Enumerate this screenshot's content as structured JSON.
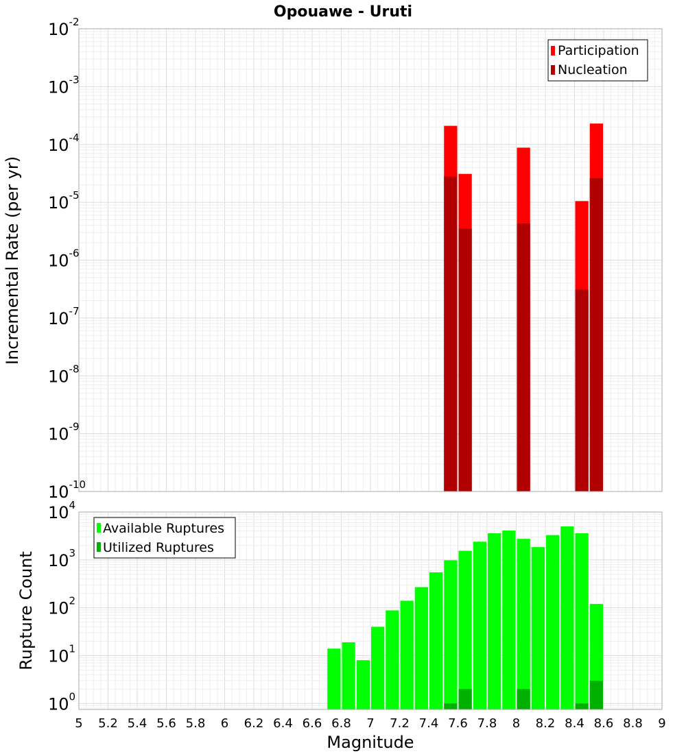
{
  "chart_data": [
    {
      "type": "bar",
      "title": "Opouawe - Uruti",
      "xlabel": "",
      "ylabel": "Incremental Rate (per yr)",
      "yscale": "log",
      "ylim": [
        1e-10,
        0.01
      ],
      "xlim": [
        5,
        9
      ],
      "grid": true,
      "legend_position": "top-right",
      "bar_width": 0.1,
      "y_ticks": [
        {
          "base": "10",
          "exp": "-10",
          "value": 1e-10
        },
        {
          "base": "10",
          "exp": "-9",
          "value": 1e-09
        },
        {
          "base": "10",
          "exp": "-8",
          "value": 1e-08
        },
        {
          "base": "10",
          "exp": "-7",
          "value": 1e-07
        },
        {
          "base": "10",
          "exp": "-6",
          "value": 1e-06
        },
        {
          "base": "10",
          "exp": "-5",
          "value": 1e-05
        },
        {
          "base": "10",
          "exp": "-4",
          "value": 0.0001
        },
        {
          "base": "10",
          "exp": "-3",
          "value": 0.001
        },
        {
          "base": "10",
          "exp": "-2",
          "value": 0.01
        }
      ],
      "series": [
        {
          "name": "Participation",
          "color": "#ff0000",
          "x": [
            7.55,
            7.65,
            8.05,
            8.45,
            8.55
          ],
          "values": [
            0.00021,
            3.1e-05,
            8.8e-05,
            1.05e-05,
            0.00023
          ]
        },
        {
          "name": "Nucleation",
          "color": "#b00000",
          "x": [
            7.55,
            7.65,
            8.05,
            8.45,
            8.55
          ],
          "values": [
            2.8e-05,
            3.5e-06,
            4.3e-06,
            3.1e-07,
            2.6e-05
          ]
        }
      ]
    },
    {
      "type": "bar",
      "xlabel": "Magnitude",
      "ylabel": "Rupture Count",
      "yscale": "log",
      "ylim": [
        0.75,
        10000
      ],
      "xlim": [
        5,
        9
      ],
      "grid": true,
      "legend_position": "top-left",
      "bar_width": 0.1,
      "x_ticks": [
        "5",
        "5.2",
        "5.4",
        "5.6",
        "5.8",
        "6",
        "6.2",
        "6.4",
        "6.6",
        "6.8",
        "7",
        "7.2",
        "7.4",
        "7.6",
        "7.8",
        "8",
        "8.2",
        "8.4",
        "8.6",
        "8.8",
        "9"
      ],
      "y_ticks": [
        {
          "base": "10",
          "exp": "0",
          "value": 1
        },
        {
          "base": "10",
          "exp": "1",
          "value": 10
        },
        {
          "base": "10",
          "exp": "2",
          "value": 100
        },
        {
          "base": "10",
          "exp": "3",
          "value": 1000
        },
        {
          "base": "10",
          "exp": "4",
          "value": 10000
        }
      ],
      "series": [
        {
          "name": "Available Ruptures",
          "color": "#00ff00",
          "x": [
            6.75,
            6.85,
            6.95,
            7.05,
            7.15,
            7.25,
            7.35,
            7.45,
            7.55,
            7.65,
            7.75,
            7.85,
            7.95,
            8.05,
            8.15,
            8.25,
            8.35,
            8.45,
            8.55
          ],
          "values": [
            14,
            19,
            8,
            40,
            88,
            140,
            270,
            550,
            980,
            1550,
            2400,
            3600,
            4100,
            2750,
            1850,
            3300,
            5000,
            3600,
            120
          ]
        },
        {
          "name": "Utilized Ruptures",
          "color": "#00b000",
          "x": [
            7.55,
            7.65,
            8.05,
            8.45,
            8.55
          ],
          "values": [
            1,
            2,
            2,
            1,
            3
          ]
        }
      ]
    }
  ]
}
